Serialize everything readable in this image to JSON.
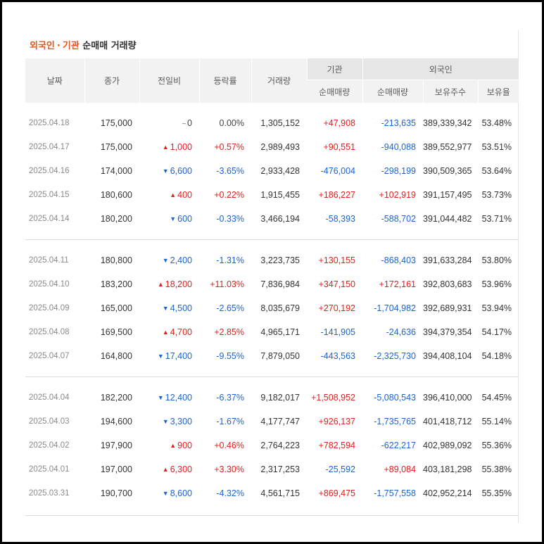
{
  "title": {
    "part1": "외국인",
    "separator": "·",
    "part2": "기관",
    "part3": " 순매매 거래량"
  },
  "headers": {
    "date": "날짜",
    "close": "종가",
    "change": "전일비",
    "rate": "등락률",
    "volume": "거래량",
    "institution": "기관",
    "foreign": "외국인",
    "inst_net": "순매매량",
    "foreign_net": "순매매량",
    "holdings": "보유주수",
    "holding_ratio": "보유율"
  },
  "colors": {
    "up": "#e0201d",
    "down": "#1a63d4",
    "accent": "#e8541e"
  },
  "groups": [
    [
      {
        "date": "2025.04.18",
        "close": "175,000",
        "dir": "flat",
        "change": "0",
        "rate": "0.00%",
        "volume": "1,305,152",
        "inst": "+47,908",
        "foreign": "-213,635",
        "holdings": "389,339,342",
        "ratio": "53.48%"
      },
      {
        "date": "2025.04.17",
        "close": "175,000",
        "dir": "up",
        "change": "1,000",
        "rate": "+0.57%",
        "volume": "2,989,493",
        "inst": "+90,551",
        "foreign": "-940,088",
        "holdings": "389,552,977",
        "ratio": "53.51%"
      },
      {
        "date": "2025.04.16",
        "close": "174,000",
        "dir": "down",
        "change": "6,600",
        "rate": "-3.65%",
        "volume": "2,933,428",
        "inst": "-476,004",
        "foreign": "-298,199",
        "holdings": "390,509,365",
        "ratio": "53.64%"
      },
      {
        "date": "2025.04.15",
        "close": "180,600",
        "dir": "up",
        "change": "400",
        "rate": "+0.22%",
        "volume": "1,915,455",
        "inst": "+186,227",
        "foreign": "+102,919",
        "holdings": "391,157,495",
        "ratio": "53.73%"
      },
      {
        "date": "2025.04.14",
        "close": "180,200",
        "dir": "down",
        "change": "600",
        "rate": "-0.33%",
        "volume": "3,466,194",
        "inst": "-58,393",
        "foreign": "-588,702",
        "holdings": "391,044,482",
        "ratio": "53.71%"
      }
    ],
    [
      {
        "date": "2025.04.11",
        "close": "180,800",
        "dir": "down",
        "change": "2,400",
        "rate": "-1.31%",
        "volume": "3,223,735",
        "inst": "+130,155",
        "foreign": "-868,403",
        "holdings": "391,633,284",
        "ratio": "53.80%"
      },
      {
        "date": "2025.04.10",
        "close": "183,200",
        "dir": "up",
        "change": "18,200",
        "rate": "+11.03%",
        "volume": "7,836,984",
        "inst": "+347,150",
        "foreign": "+172,161",
        "holdings": "392,803,683",
        "ratio": "53.96%"
      },
      {
        "date": "2025.04.09",
        "close": "165,000",
        "dir": "down",
        "change": "4,500",
        "rate": "-2.65%",
        "volume": "8,035,679",
        "inst": "+270,192",
        "foreign": "-1,704,982",
        "holdings": "392,689,931",
        "ratio": "53.94%"
      },
      {
        "date": "2025.04.08",
        "close": "169,500",
        "dir": "up",
        "change": "4,700",
        "rate": "+2.85%",
        "volume": "4,965,171",
        "inst": "-141,905",
        "foreign": "-24,636",
        "holdings": "394,379,354",
        "ratio": "54.17%"
      },
      {
        "date": "2025.04.07",
        "close": "164,800",
        "dir": "down",
        "change": "17,400",
        "rate": "-9.55%",
        "volume": "7,879,050",
        "inst": "-443,563",
        "foreign": "-2,325,730",
        "holdings": "394,408,104",
        "ratio": "54.18%"
      }
    ],
    [
      {
        "date": "2025.04.04",
        "close": "182,200",
        "dir": "down",
        "change": "12,400",
        "rate": "-6.37%",
        "volume": "9,182,017",
        "inst": "+1,508,952",
        "foreign": "-5,080,543",
        "holdings": "396,410,000",
        "ratio": "54.45%"
      },
      {
        "date": "2025.04.03",
        "close": "194,600",
        "dir": "down",
        "change": "3,300",
        "rate": "-1.67%",
        "volume": "4,177,747",
        "inst": "+926,137",
        "foreign": "-1,735,765",
        "holdings": "401,418,712",
        "ratio": "55.14%"
      },
      {
        "date": "2025.04.02",
        "close": "197,900",
        "dir": "up",
        "change": "900",
        "rate": "+0.46%",
        "volume": "2,764,223",
        "inst": "+782,594",
        "foreign": "-622,217",
        "holdings": "402,989,092",
        "ratio": "55.36%"
      },
      {
        "date": "2025.04.01",
        "close": "197,000",
        "dir": "up",
        "change": "6,300",
        "rate": "+3.30%",
        "volume": "2,317,253",
        "inst": "-25,592",
        "foreign": "+89,084",
        "holdings": "403,181,298",
        "ratio": "55.38%"
      },
      {
        "date": "2025.03.31",
        "close": "190,700",
        "dir": "down",
        "change": "8,600",
        "rate": "-4.32%",
        "volume": "4,561,715",
        "inst": "+869,475",
        "foreign": "-1,757,558",
        "holdings": "402,952,214",
        "ratio": "55.35%"
      }
    ]
  ]
}
